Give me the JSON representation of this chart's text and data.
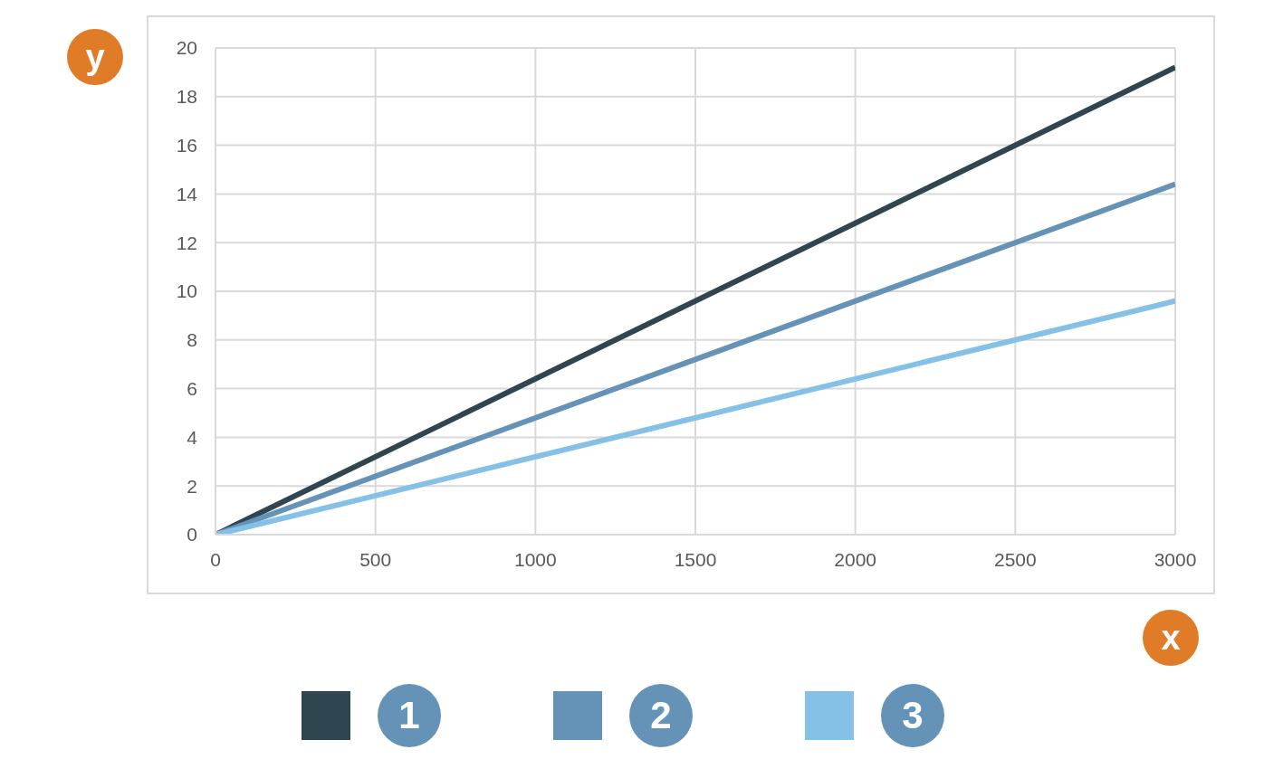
{
  "chart_data": {
    "type": "line",
    "xlabel": "x",
    "ylabel": "y",
    "x": [
      0,
      3000
    ],
    "series": [
      {
        "name": "1",
        "color": "#2f4550",
        "values": [
          0,
          19.2
        ]
      },
      {
        "name": "2",
        "color": "#6593b8",
        "values": [
          0,
          14.4
        ]
      },
      {
        "name": "3",
        "color": "#85c1e6",
        "values": [
          0,
          9.6
        ]
      }
    ],
    "xlim": [
      0,
      3000
    ],
    "xticks": [
      0,
      500,
      1000,
      1500,
      2000,
      2500,
      3000
    ],
    "ylim": [
      0,
      20
    ],
    "yticks": [
      0,
      2,
      4,
      6,
      8,
      10,
      12,
      14,
      16,
      18,
      20
    ],
    "grid": true,
    "legend": "bottom"
  }
}
